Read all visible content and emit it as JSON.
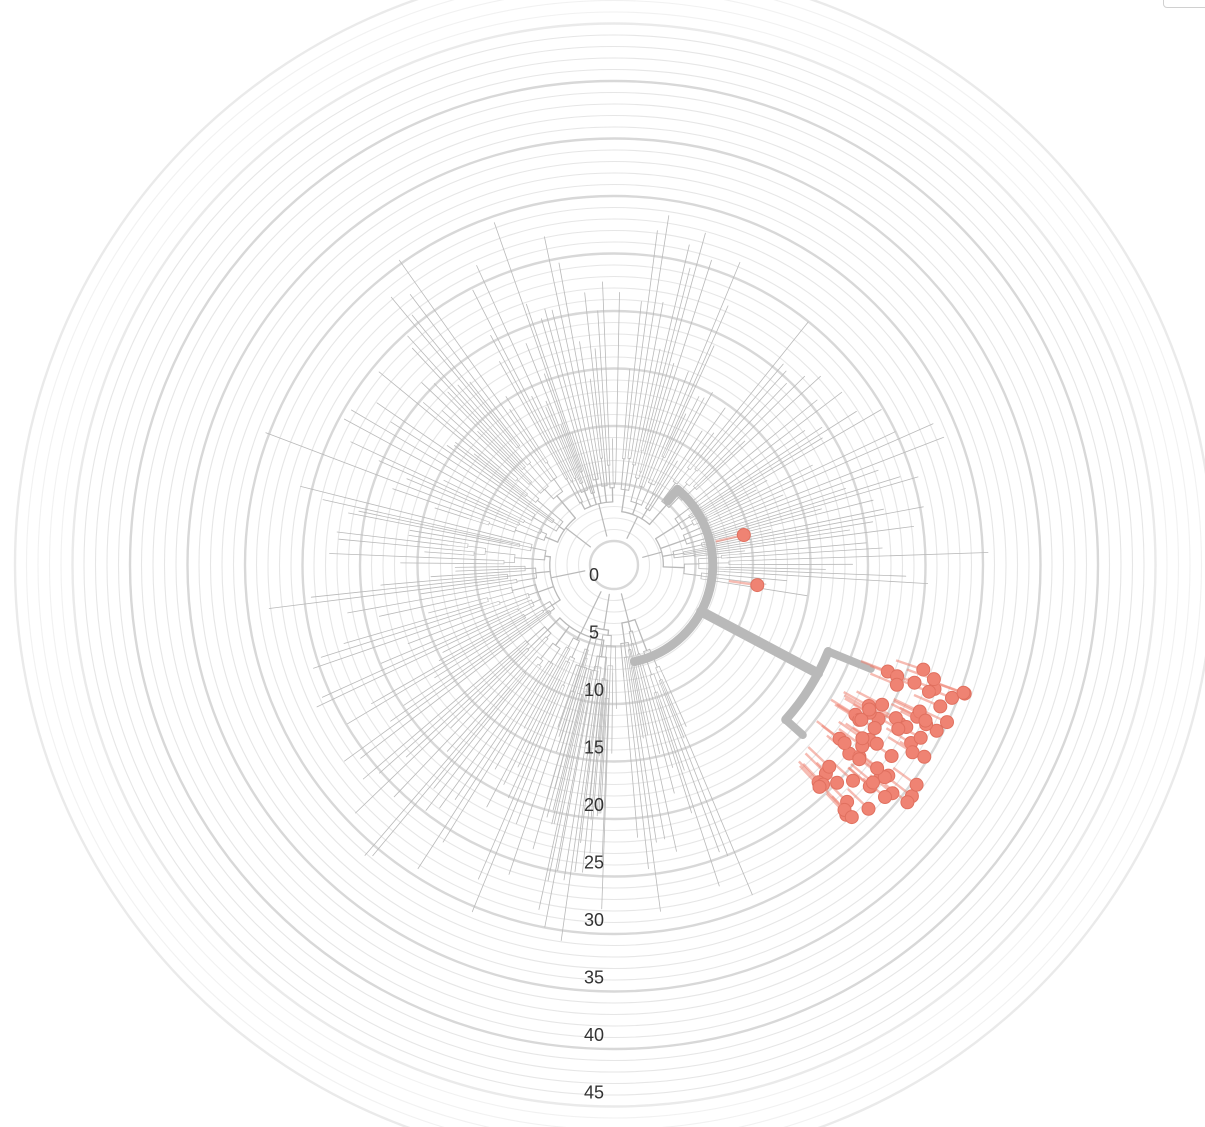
{
  "tree": {
    "layout": "radial",
    "axis_tick_labels": [
      "0",
      "5",
      "10",
      "15",
      "20",
      "25",
      "30",
      "35",
      "40",
      "45"
    ],
    "colors": {
      "ring_light": "#e6e6e6",
      "ring_major": "#d8d8d8",
      "branch": "#b9b9b9",
      "highlight_branch": "#b3b3b3",
      "tip_marker": "#ef8373",
      "axis_text": "#333333"
    },
    "highlighted_tip_count": 72
  }
}
